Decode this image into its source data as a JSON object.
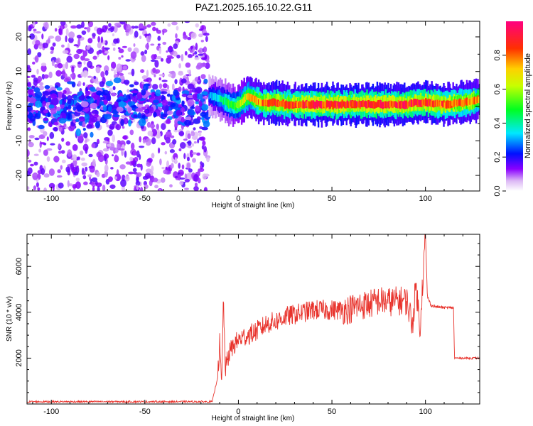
{
  "figure": {
    "title": "PAZ1.2025.165.10.22.G11"
  },
  "chart_data": [
    {
      "type": "heatmap",
      "title": "PAZ1.2025.165.10.22.G11",
      "xlabel": "Height of straight line (km)",
      "ylabel": "Frequency (Hz)",
      "xlim": [
        -113,
        129
      ],
      "ylim": [
        -24.5,
        24.5
      ],
      "xticks": [
        -100,
        -50,
        0,
        50,
        100
      ],
      "xtick_labels": [
        "-100",
        "-50",
        "0",
        "50",
        "100"
      ],
      "yticks": [
        -20,
        -10,
        0,
        10,
        20
      ],
      "ytick_labels": [
        "-20",
        "-10",
        "0",
        "10",
        "20"
      ],
      "grid": false,
      "colormap": "rainbow (white-violet-blue-cyan-green-yellow-red-magenta)",
      "colorbar": {
        "label": "Normalized spectral amplitude",
        "range": [
          0,
          1
        ],
        "ticks": [
          0.0,
          0.2,
          0.4,
          0.6,
          0.8
        ],
        "tick_labels": [
          "0.0",
          "0.2",
          "0.4",
          "0.6",
          "0.8"
        ]
      },
      "noise_region": {
        "x": [
          -113,
          -16
        ],
        "y": [
          -24.5,
          24.5
        ],
        "amplitude": [
          0.05,
          0.25
        ]
      },
      "signal_track": {
        "x": [
          -16,
          -12,
          -8,
          -5,
          -2,
          0,
          2,
          5,
          8,
          12,
          16,
          20,
          25,
          30,
          40,
          50,
          60,
          70,
          80,
          90,
          95,
          100,
          110,
          120,
          129
        ],
        "frequency": [
          3.0,
          2.5,
          1.5,
          0.5,
          0.0,
          0.5,
          1.5,
          3.0,
          2.0,
          1.0,
          1.0,
          1.0,
          0.5,
          0.5,
          0.5,
          0.5,
          0.5,
          0.5,
          0.5,
          0.5,
          1.0,
          1.0,
          0.5,
          1.0,
          2.0
        ],
        "amplitude": [
          0.3,
          0.35,
          0.45,
          0.5,
          0.55,
          0.6,
          0.65,
          0.7,
          0.75,
          0.8,
          0.85,
          0.85,
          0.85,
          0.85,
          0.9,
          0.9,
          0.9,
          0.9,
          0.9,
          0.9,
          0.9,
          0.9,
          0.85,
          0.8,
          0.75
        ]
      }
    },
    {
      "type": "line",
      "title": "",
      "xlabel": "Height of straight line (km)",
      "ylabel": "SNR (10 * v/v)",
      "xlim": [
        -113,
        129
      ],
      "ylim": [
        0,
        7400
      ],
      "xticks": [
        -100,
        -50,
        0,
        50,
        100
      ],
      "xtick_labels": [
        "-100",
        "-50",
        "0",
        "50",
        "100"
      ],
      "yticks": [
        2000,
        4000,
        6000
      ],
      "ytick_labels": [
        "2000",
        "4000",
        "6000"
      ],
      "grid": false,
      "line_color": "#e8322b",
      "series": [
        {
          "x": [
            -113,
            -100,
            -80,
            -60,
            -40,
            -20,
            -14,
            -11,
            -10,
            -9,
            -8,
            -7,
            -5,
            -3,
            -1,
            2,
            5,
            8,
            12,
            15,
            20,
            25,
            30,
            35,
            40,
            45,
            50,
            55,
            60,
            65,
            70,
            75,
            80,
            85,
            90,
            93,
            95,
            97,
            99,
            100,
            101,
            103,
            105,
            110,
            115,
            115.5,
            120,
            125,
            129
          ],
          "y": [
            100,
            100,
            100,
            100,
            100,
            100,
            100,
            1200,
            2700,
            600,
            4600,
            1500,
            2200,
            2500,
            2700,
            2900,
            3000,
            3100,
            3300,
            3500,
            3600,
            3800,
            3900,
            4000,
            4100,
            4100,
            4100,
            4100,
            4150,
            4300,
            4350,
            4500,
            4450,
            4500,
            4500,
            3500,
            5200,
            3300,
            6000,
            7400,
            4700,
            4300,
            4250,
            4200,
            4200,
            2000,
            2000,
            2000,
            2000
          ]
        }
      ]
    }
  ]
}
